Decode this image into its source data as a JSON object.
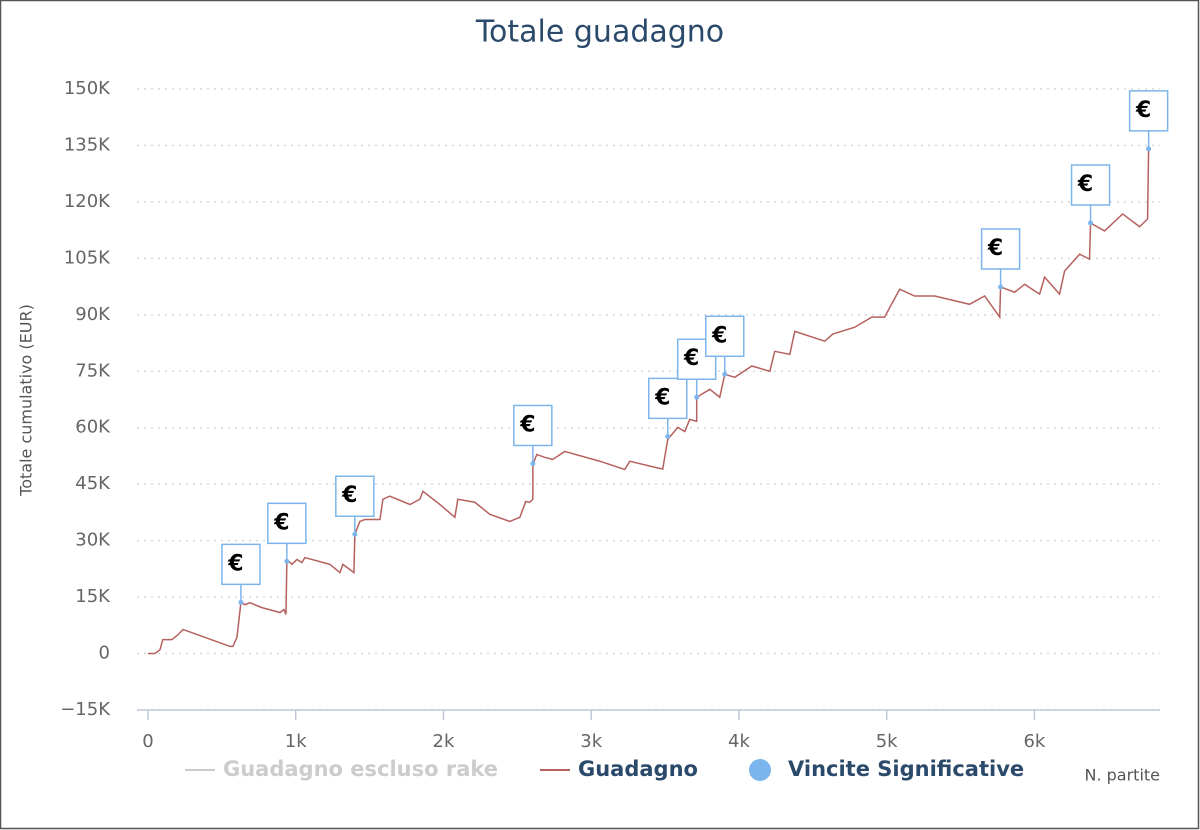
{
  "chart_data": {
    "type": "line",
    "title": "Totale guadagno",
    "y_axis_label": "Totale cumulativo (EUR)",
    "x_axis_label": "N. partite",
    "xlim": [
      0,
      6850
    ],
    "ylim": [
      -15000,
      150000
    ],
    "xticks": [
      0,
      {
        "value": 1000,
        "label": "1k"
      },
      {
        "value": 2000,
        "label": "2k"
      },
      {
        "value": 3000,
        "label": "3k"
      },
      {
        "value": 4000,
        "label": "4k"
      },
      {
        "value": 5000,
        "label": "5k"
      },
      {
        "value": 6000,
        "label": "6k"
      }
    ],
    "yticks": [
      {
        "value": -15000,
        "label": "−15K"
      },
      0,
      {
        "value": 15000,
        "label": "15K"
      },
      {
        "value": 30000,
        "label": "30K"
      },
      {
        "value": 45000,
        "label": "45K"
      },
      {
        "value": 60000,
        "label": "60K"
      },
      {
        "value": 75000,
        "label": "75K"
      },
      {
        "value": 90000,
        "label": "90K"
      },
      {
        "value": 105000,
        "label": "105K"
      },
      {
        "value": 120000,
        "label": "120K"
      },
      {
        "value": 135000,
        "label": "135K"
      },
      {
        "value": 150000,
        "label": "150K"
      }
    ],
    "grid": true,
    "series": [
      {
        "name": "Guadagno escluso rake",
        "color": "#cccccc",
        "visible": false,
        "x": [],
        "values": []
      },
      {
        "name": "Guadagno",
        "color": "#b5615f",
        "x": [
          0,
          47,
          81,
          100,
          162,
          203,
          237,
          555,
          575,
          602,
          629,
          656,
          690,
          771,
          893,
          920,
          934,
          940,
          974,
          1008,
          1042,
          1062,
          1231,
          1299,
          1319,
          1367,
          1394,
          1400,
          1434,
          1468,
          1570,
          1590,
          1637,
          1773,
          1840,
          1861,
          1976,
          2077,
          2097,
          2212,
          2314,
          2449,
          2517,
          2557,
          2585,
          2605,
          2605,
          2632,
          2686,
          2740,
          2821,
          3058,
          3227,
          3261,
          3430,
          3484,
          3518,
          3586,
          3633,
          3667,
          3714,
          3714,
          3803,
          3870,
          3904,
          3972,
          4087,
          4209,
          4242,
          4344,
          4378,
          4581,
          4635,
          4784,
          4899,
          4986,
          5088,
          5189,
          5325,
          5561,
          5663,
          5765,
          5771,
          5866,
          5934,
          6035,
          6069,
          6170,
          6204,
          6306,
          6373,
          6380,
          6475,
          6597,
          6712,
          6766,
          6773
        ],
        "values": [
          0,
          0,
          1000,
          3700,
          3700,
          5000,
          6400,
          1900,
          1900,
          4300,
          13600,
          13000,
          13500,
          12200,
          10900,
          11700,
          10400,
          25000,
          23700,
          25000,
          24200,
          25500,
          23700,
          21500,
          23700,
          22300,
          21500,
          31700,
          35100,
          35600,
          35600,
          41000,
          41800,
          39600,
          41000,
          43100,
          39600,
          36200,
          41000,
          40200,
          37000,
          35100,
          36200,
          40400,
          40200,
          41000,
          50300,
          52900,
          52100,
          51600,
          53700,
          51100,
          48900,
          51100,
          49500,
          49000,
          56900,
          60100,
          59000,
          62200,
          61700,
          68100,
          70200,
          68100,
          74200,
          73400,
          76400,
          75000,
          80300,
          79500,
          85600,
          83000,
          84900,
          86700,
          89400,
          89400,
          96800,
          95000,
          95000,
          92800,
          95000,
          89400,
          97400,
          96000,
          98100,
          95500,
          100000,
          95500,
          101600,
          106100,
          104800,
          114400,
          112300,
          116800,
          113400,
          115500,
          134100
        ]
      },
      {
        "name": "Vincite Significative",
        "color": "#7cb5ec",
        "type": "flags",
        "flag_text": "€",
        "x": [
          629,
          940,
          1400,
          2605,
          3518,
          3714,
          3904,
          5771,
          6380,
          6773
        ],
        "values": [
          13600,
          24500,
          31700,
          50500,
          57700,
          68100,
          74200,
          97400,
          114400,
          134100
        ]
      }
    ]
  }
}
